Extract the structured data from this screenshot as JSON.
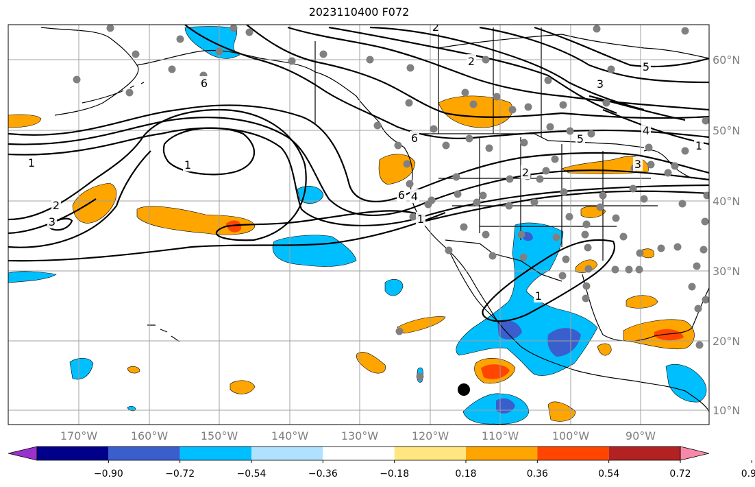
{
  "title": "2023110400 F072",
  "lon_labels": [
    "170°W",
    "160°W",
    "150°W",
    "140°W",
    "130°W",
    "120°W",
    "110°W",
    "100°W",
    "90°W"
  ],
  "lat_labels": [
    "60°N",
    "50°N",
    "40°N",
    "30°N",
    "20°N",
    "10°N"
  ],
  "colorbar": {
    "colors": [
      "#9932CC",
      "#00008B",
      "#3A5FCD",
      "#00BFFF",
      "#B0E2FF",
      "#FFFFFF",
      "#FFE680",
      "#FFA500",
      "#FF4500",
      "#B22222",
      "#F888A8"
    ],
    "ticks": [
      "−0.90",
      "−0.72",
      "−0.54",
      "−0.36",
      "−0.18",
      "0.18",
      "0.36",
      "0.54",
      "0.72",
      "0.90"
    ]
  },
  "contour_labels": [
    "2",
    "2",
    "5",
    "3",
    "4",
    "5",
    "6",
    "6",
    "1",
    "3",
    "2",
    "1",
    "1",
    "2",
    "3",
    "6",
    "4",
    "1",
    "1"
  ],
  "palette": {
    "coast": "#000000",
    "grid": "#a0a0a0",
    "station": "#808080",
    "marker": "#000000",
    "axis_text": "#7f7f7f"
  }
}
